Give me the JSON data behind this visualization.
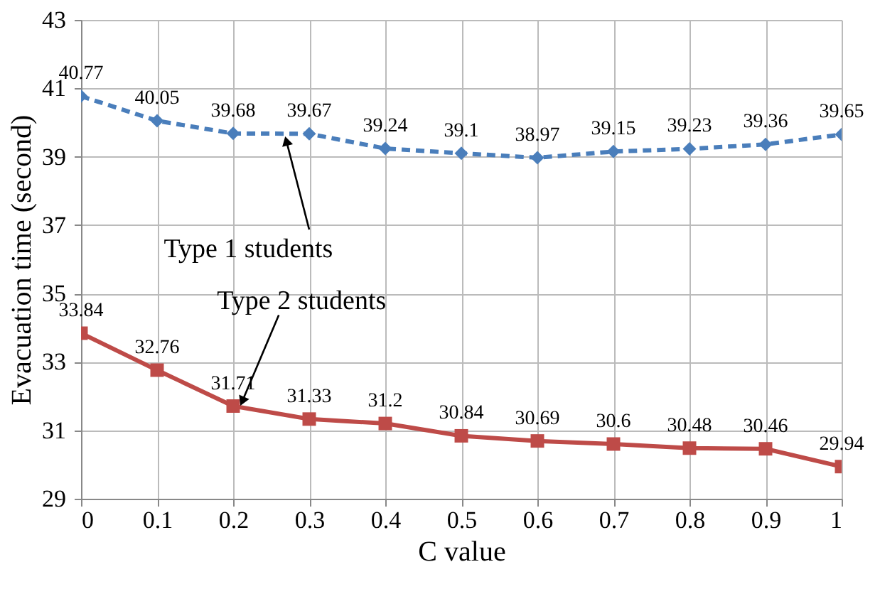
{
  "chart_data": {
    "type": "line",
    "xlabel": "C value",
    "ylabel": "Evacuation time (second)",
    "x": [
      0,
      0.1,
      0.2,
      0.3,
      0.4,
      0.5,
      0.6,
      0.7,
      0.8,
      0.9,
      1
    ],
    "series": [
      {
        "name": "Type 1 students",
        "color": "#4a7ebb",
        "marker": "diamond",
        "line_style": "dashed",
        "values": [
          40.77,
          40.05,
          39.68,
          39.67,
          39.24,
          39.1,
          38.97,
          39.15,
          39.23,
          39.36,
          39.65
        ]
      },
      {
        "name": "Type 2 students",
        "color": "#be4b48",
        "marker": "square",
        "line_style": "solid",
        "values": [
          33.84,
          32.76,
          31.71,
          31.33,
          31.2,
          30.84,
          30.69,
          30.6,
          30.48,
          30.46,
          29.94
        ]
      }
    ],
    "xlim": [
      0,
      1
    ],
    "xticks": [
      0,
      0.1,
      0.2,
      0.3,
      0.4,
      0.5,
      0.6,
      0.7,
      0.8,
      0.9,
      1
    ],
    "ylim": [
      29,
      43
    ],
    "yticks": [
      29,
      31,
      33,
      35,
      37,
      39,
      41,
      43
    ],
    "grid": true,
    "data_labels": true
  }
}
